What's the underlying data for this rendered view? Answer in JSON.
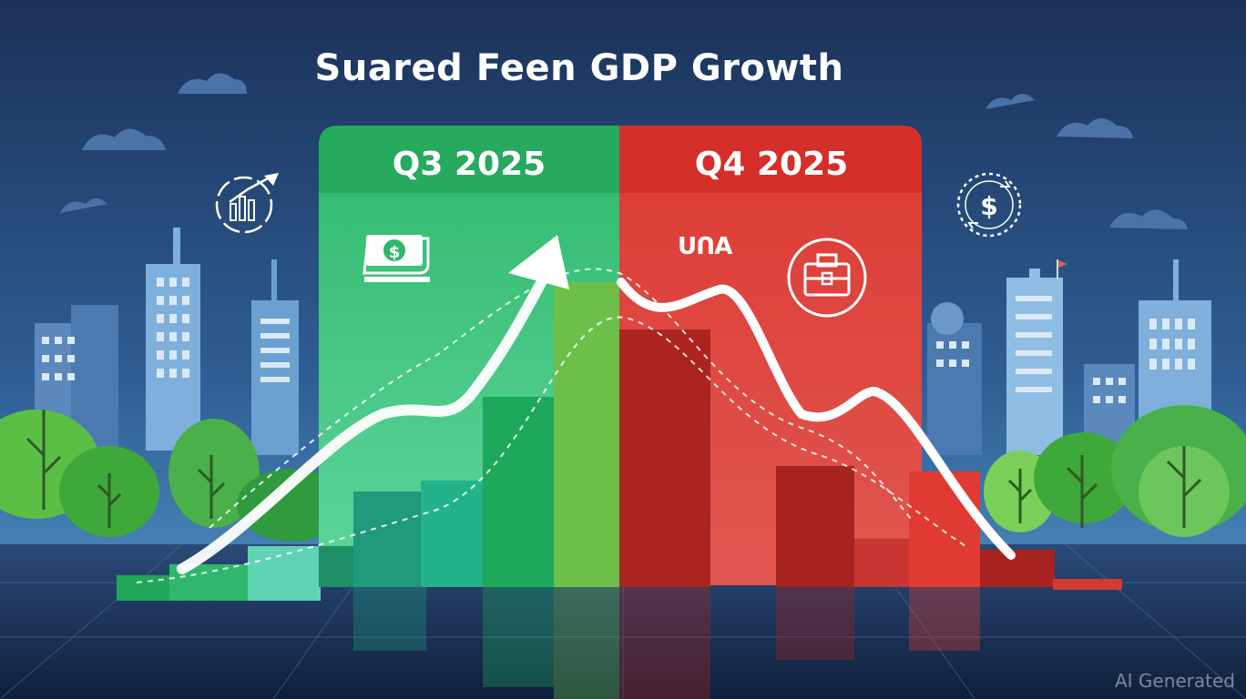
{
  "title": "Suared Feen GDP Growth",
  "panels": {
    "left_label": "Q3 2025",
    "right_label": "Q4 2025",
    "right_side_text": "ᑌᑎA"
  },
  "watermark": "AI Generated",
  "colors": {
    "sky_top": "#1c3560",
    "sky_bottom": "#4d8fc4",
    "green_accent": "#22a65a",
    "red_accent": "#d7332e",
    "white": "#ffffff"
  },
  "icons": {
    "left_circle": "growth-chart-icon",
    "money": "money-bill-icon",
    "right_circle": "dollar-exchange-icon",
    "red_circle": "briefcase-icon",
    "arrow": "up-arrow-icon"
  }
}
